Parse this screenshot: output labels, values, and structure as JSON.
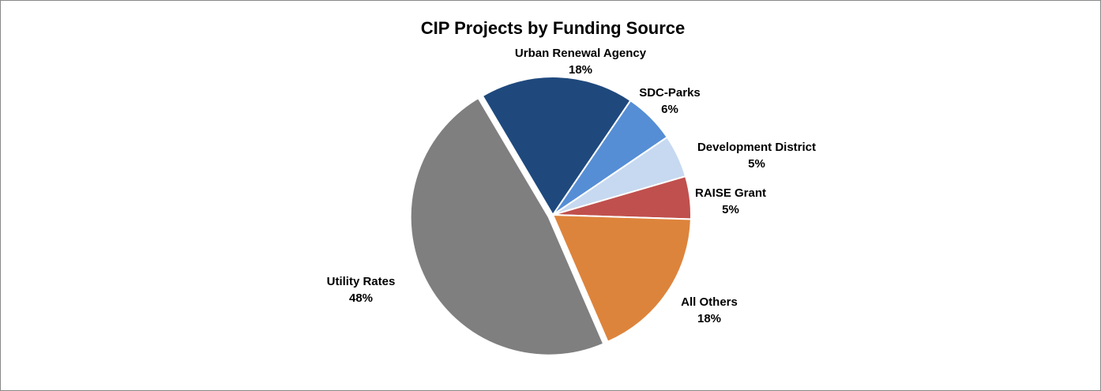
{
  "chart_data": {
    "type": "pie",
    "title": "CIP Projects by Funding Source",
    "categories": [
      "Urban Renewal Agency",
      "SDC-Parks",
      "Development District",
      "RAISE Grant",
      "All Others",
      "Utility Rates"
    ],
    "values": [
      18,
      6,
      5,
      5,
      18,
      48
    ],
    "value_labels": [
      "18%",
      "6%",
      "5%",
      "5%",
      "18%",
      "48%"
    ],
    "colors": [
      "#1f497d",
      "#558ed5",
      "#c6d9f1",
      "#c0504d",
      "#dd843c",
      "#7f7f7f"
    ]
  }
}
